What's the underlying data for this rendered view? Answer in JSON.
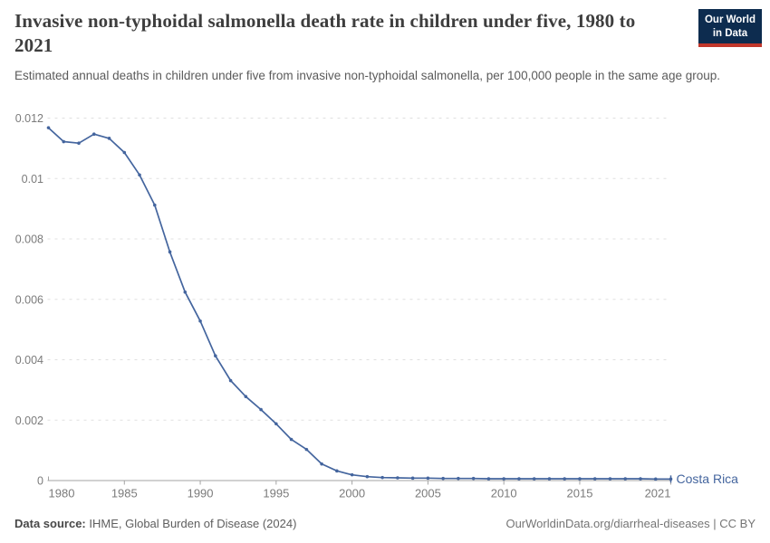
{
  "header": {
    "title": "Invasive non-typhoidal salmonella death rate in children under five, 1980 to 2021",
    "subtitle": "Estimated annual deaths in children under five from invasive non-typhoidal salmonella, per 100,000 people in the same age group.",
    "logo_line1": "Our World",
    "logo_line2": "in Data"
  },
  "footer": {
    "source_label": "Data source:",
    "source_text": " IHME, Global Burden of Disease (2024)",
    "url": "OurWorldinData.org/diarrheal-diseases",
    "license": " | CC BY"
  },
  "colors": {
    "line": "#44659e",
    "entity_label": "#44659e",
    "gridline": "#e0e0e0",
    "axis": "#a3a3a3",
    "tick_label": "#7b7b7b",
    "logo_bg": "#0d2c4f",
    "logo_red": "#c1372b"
  },
  "chart_data": {
    "type": "line",
    "title": "Invasive non-typhoidal salmonella death rate in children under five, 1980 to 2021",
    "xlabel": "",
    "ylabel": "",
    "xlim": [
      1980,
      2021
    ],
    "ylim": [
      0,
      0.012
    ],
    "grid": "dashed horizontal",
    "legend_position": "end-of-line label",
    "xticks": [
      {
        "value": 1980,
        "label": "1980"
      },
      {
        "value": 1985,
        "label": "1985"
      },
      {
        "value": 1990,
        "label": "1990"
      },
      {
        "value": 1995,
        "label": "1995"
      },
      {
        "value": 2000,
        "label": "2000"
      },
      {
        "value": 2005,
        "label": "2005"
      },
      {
        "value": 2010,
        "label": "2010"
      },
      {
        "value": 2015,
        "label": "2015"
      },
      {
        "value": 2021,
        "label": "2021"
      }
    ],
    "yticks": [
      {
        "value": 0,
        "label": "0"
      },
      {
        "value": 0.002,
        "label": "0.002"
      },
      {
        "value": 0.004,
        "label": "0.004"
      },
      {
        "value": 0.006,
        "label": "0.006"
      },
      {
        "value": 0.008,
        "label": "0.008"
      },
      {
        "value": 0.01,
        "label": "0.01"
      },
      {
        "value": 0.012,
        "label": "0.012"
      }
    ],
    "series": [
      {
        "name": "Costa Rica",
        "color": "#44659e",
        "years": [
          1980,
          1981,
          1982,
          1983,
          1984,
          1985,
          1986,
          1987,
          1988,
          1989,
          1990,
          1991,
          1992,
          1993,
          1994,
          1995,
          1996,
          1997,
          1998,
          1999,
          2000,
          2001,
          2002,
          2003,
          2004,
          2005,
          2006,
          2007,
          2008,
          2009,
          2010,
          2011,
          2012,
          2013,
          2014,
          2015,
          2016,
          2017,
          2018,
          2019,
          2020,
          2021
        ],
        "values": [
          0.01168,
          0.01122,
          0.01117,
          0.01147,
          0.01133,
          0.01086,
          0.01012,
          0.00912,
          0.00757,
          0.00624,
          0.00528,
          0.00413,
          0.00331,
          0.00278,
          0.00235,
          0.00188,
          0.00136,
          0.00103,
          0.00055,
          0.00032,
          0.00019,
          0.00013,
          0.0001,
          9e-05,
          8e-05,
          8e-05,
          7e-05,
          7e-05,
          7e-05,
          6e-05,
          6e-05,
          6e-05,
          6e-05,
          6e-05,
          6e-05,
          6e-05,
          6e-05,
          6e-05,
          6e-05,
          6e-05,
          5e-05,
          5e-05
        ]
      }
    ]
  }
}
